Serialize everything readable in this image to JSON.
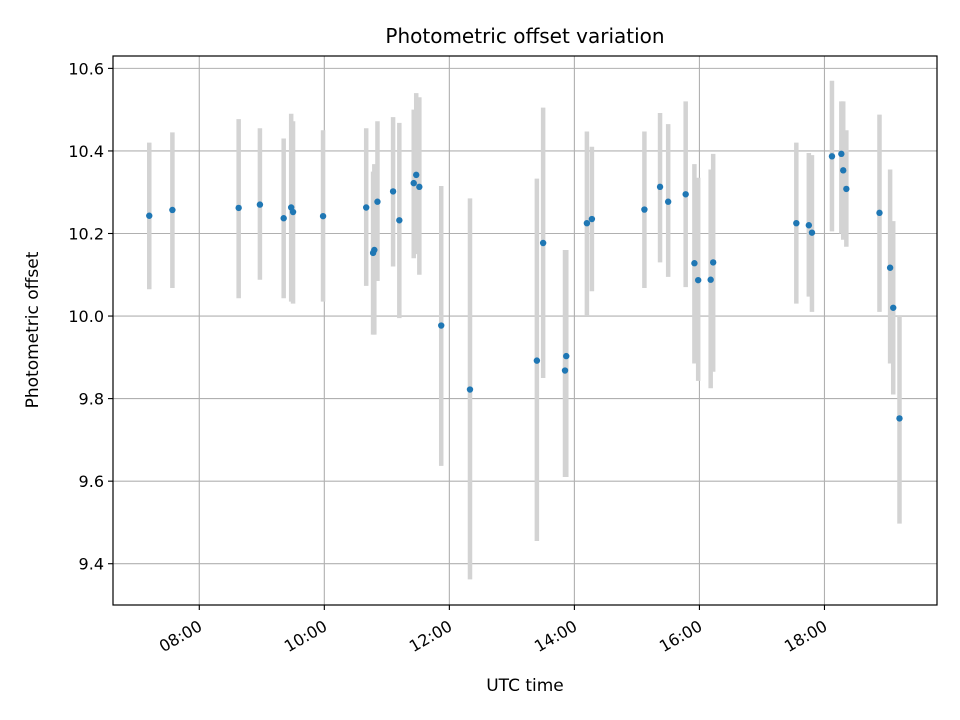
{
  "chart_data": {
    "type": "scatter",
    "title": "Photometric offset variation",
    "xlabel": "UTC time",
    "ylabel": "Photometric offset",
    "x_unit": "decimal hours UTC",
    "xlim": [
      6.62,
      19.8
    ],
    "ylim": [
      9.3,
      10.63
    ],
    "x_ticks": [
      8,
      10,
      12,
      14,
      16,
      18
    ],
    "x_tick_labels": [
      "08:00",
      "10:00",
      "12:00",
      "14:00",
      "16:00",
      "18:00"
    ],
    "y_ticks": [
      9.4,
      9.6,
      9.8,
      10.0,
      10.2,
      10.4,
      10.6
    ],
    "y_tick_labels": [
      "9.4",
      "9.6",
      "9.8",
      "10.0",
      "10.2",
      "10.4",
      "10.6"
    ],
    "grid": true,
    "legend": false,
    "colors": {
      "marker": "#1f77b4",
      "errorbar": "#d3d3d3",
      "grid": "#b0b0b0"
    },
    "points": [
      {
        "x": 7.2,
        "y": 10.243,
        "ylo": 10.065,
        "yhi": 10.42
      },
      {
        "x": 7.57,
        "y": 10.257,
        "ylo": 10.068,
        "yhi": 10.445
      },
      {
        "x": 8.63,
        "y": 10.262,
        "ylo": 10.043,
        "yhi": 10.477
      },
      {
        "x": 8.97,
        "y": 10.27,
        "ylo": 10.088,
        "yhi": 10.455
      },
      {
        "x": 9.35,
        "y": 10.237,
        "ylo": 10.043,
        "yhi": 10.43
      },
      {
        "x": 9.47,
        "y": 10.263,
        "ylo": 10.035,
        "yhi": 10.49
      },
      {
        "x": 9.5,
        "y": 10.252,
        "ylo": 10.03,
        "yhi": 10.472
      },
      {
        "x": 9.98,
        "y": 10.242,
        "ylo": 10.035,
        "yhi": 10.45
      },
      {
        "x": 10.67,
        "y": 10.263,
        "ylo": 10.073,
        "yhi": 10.455
      },
      {
        "x": 10.78,
        "y": 10.153,
        "ylo": 9.955,
        "yhi": 10.35
      },
      {
        "x": 10.8,
        "y": 10.16,
        "ylo": 9.955,
        "yhi": 10.368
      },
      {
        "x": 10.85,
        "y": 10.277,
        "ylo": 10.085,
        "yhi": 10.472
      },
      {
        "x": 11.1,
        "y": 10.302,
        "ylo": 10.12,
        "yhi": 10.482
      },
      {
        "x": 11.2,
        "y": 10.232,
        "ylo": 9.995,
        "yhi": 10.468
      },
      {
        "x": 11.43,
        "y": 10.322,
        "ylo": 10.14,
        "yhi": 10.5
      },
      {
        "x": 11.47,
        "y": 10.342,
        "ylo": 10.15,
        "yhi": 10.54
      },
      {
        "x": 11.52,
        "y": 10.313,
        "ylo": 10.1,
        "yhi": 10.53
      },
      {
        "x": 11.87,
        "y": 9.977,
        "ylo": 9.637,
        "yhi": 10.315
      },
      {
        "x": 12.33,
        "y": 9.822,
        "ylo": 9.362,
        "yhi": 10.285
      },
      {
        "x": 13.4,
        "y": 9.892,
        "ylo": 9.455,
        "yhi": 10.333
      },
      {
        "x": 13.5,
        "y": 10.177,
        "ylo": 9.85,
        "yhi": 10.505
      },
      {
        "x": 13.85,
        "y": 9.868,
        "ylo": 9.61,
        "yhi": 10.16
      },
      {
        "x": 13.87,
        "y": 9.903,
        "ylo": 9.61,
        "yhi": 10.16
      },
      {
        "x": 14.2,
        "y": 10.225,
        "ylo": 10.0,
        "yhi": 10.447
      },
      {
        "x": 14.28,
        "y": 10.235,
        "ylo": 10.06,
        "yhi": 10.41
      },
      {
        "x": 15.12,
        "y": 10.258,
        "ylo": 10.068,
        "yhi": 10.447
      },
      {
        "x": 15.37,
        "y": 10.313,
        "ylo": 10.13,
        "yhi": 10.492
      },
      {
        "x": 15.5,
        "y": 10.277,
        "ylo": 10.095,
        "yhi": 10.465
      },
      {
        "x": 15.78,
        "y": 10.295,
        "ylo": 10.07,
        "yhi": 10.52
      },
      {
        "x": 15.92,
        "y": 10.128,
        "ylo": 9.885,
        "yhi": 10.368
      },
      {
        "x": 15.98,
        "y": 10.087,
        "ylo": 9.843,
        "yhi": 10.335
      },
      {
        "x": 16.18,
        "y": 10.088,
        "ylo": 9.825,
        "yhi": 10.355
      },
      {
        "x": 16.22,
        "y": 10.13,
        "ylo": 9.865,
        "yhi": 10.393
      },
      {
        "x": 17.55,
        "y": 10.225,
        "ylo": 10.03,
        "yhi": 10.42
      },
      {
        "x": 17.75,
        "y": 10.22,
        "ylo": 10.047,
        "yhi": 10.395
      },
      {
        "x": 17.8,
        "y": 10.202,
        "ylo": 10.01,
        "yhi": 10.39
      },
      {
        "x": 18.12,
        "y": 10.387,
        "ylo": 10.205,
        "yhi": 10.57
      },
      {
        "x": 18.27,
        "y": 10.393,
        "ylo": 10.2,
        "yhi": 10.52
      },
      {
        "x": 18.3,
        "y": 10.353,
        "ylo": 10.185,
        "yhi": 10.52
      },
      {
        "x": 18.35,
        "y": 10.308,
        "ylo": 10.168,
        "yhi": 10.45
      },
      {
        "x": 18.88,
        "y": 10.25,
        "ylo": 10.01,
        "yhi": 10.488
      },
      {
        "x": 19.05,
        "y": 10.117,
        "ylo": 9.885,
        "yhi": 10.355
      },
      {
        "x": 19.1,
        "y": 10.02,
        "ylo": 9.81,
        "yhi": 10.23
      },
      {
        "x": 19.2,
        "y": 9.752,
        "ylo": 9.497,
        "yhi": 10.0
      }
    ]
  }
}
